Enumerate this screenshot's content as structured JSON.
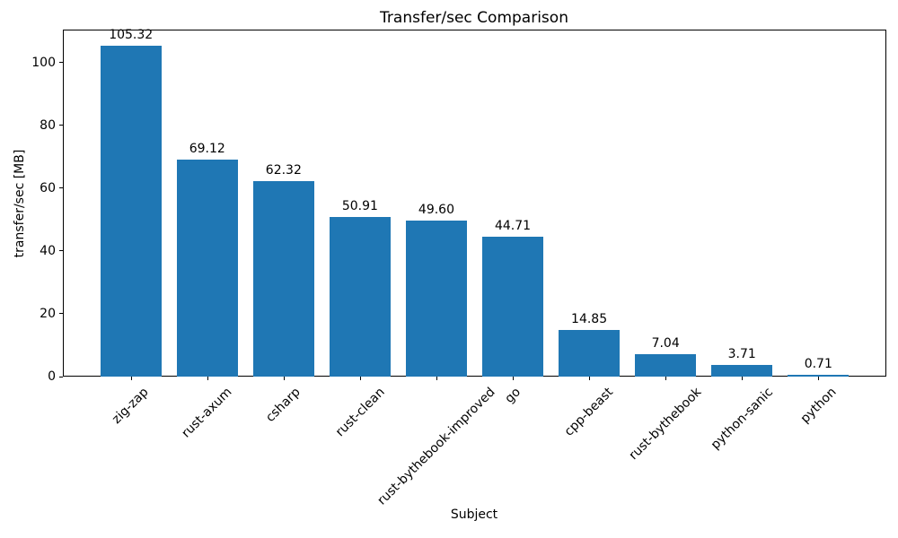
{
  "chart_data": {
    "type": "bar",
    "title": "Transfer/sec Comparison",
    "xlabel": "Subject",
    "ylabel": "transfer/sec [MB]",
    "categories": [
      "zig-zap",
      "rust-axum",
      "csharp",
      "rust-clean",
      "rust-bythebook-improved",
      "go",
      "cpp-beast",
      "rust-bythebook",
      "python-sanic",
      "python"
    ],
    "values": [
      105.32,
      69.12,
      62.32,
      50.91,
      49.6,
      44.71,
      14.85,
      7.04,
      3.71,
      0.71
    ],
    "value_labels": [
      "105.32",
      "69.12",
      "62.32",
      "50.91",
      "49.60",
      "44.71",
      "14.85",
      "7.04",
      "3.71",
      "0.71"
    ],
    "bar_color": "#1f77b4",
    "ylim": [
      0,
      110.57
    ],
    "yticks": [
      0,
      20,
      40,
      60,
      80,
      100
    ],
    "x_tick_rotation_deg": 45,
    "grid": false,
    "legend_position": "none"
  }
}
